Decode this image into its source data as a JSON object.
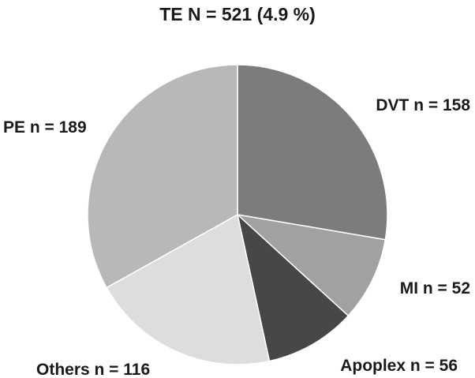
{
  "chart_data": {
    "type": "pie",
    "title": "TE N = 521 (4.9 %)",
    "slices": [
      {
        "label": "DVT n = 158",
        "category": "DVT",
        "value": 158,
        "color": "#7b7c7e"
      },
      {
        "label": "MI n = 52",
        "category": "MI",
        "value": 52,
        "color": "#9fa1a3"
      },
      {
        "label": "Apoplex n = 56",
        "category": "Apoplex",
        "value": 56,
        "color": "#474747"
      },
      {
        "label": "Others n = 116",
        "category": "Others",
        "value": 116,
        "color": "#dcdddf"
      },
      {
        "label": "PE n = 189",
        "category": "PE",
        "value": 189,
        "color": "#b7b8ba"
      }
    ],
    "start_angle_deg": 0,
    "direction": "clockwise",
    "legend": "none"
  }
}
